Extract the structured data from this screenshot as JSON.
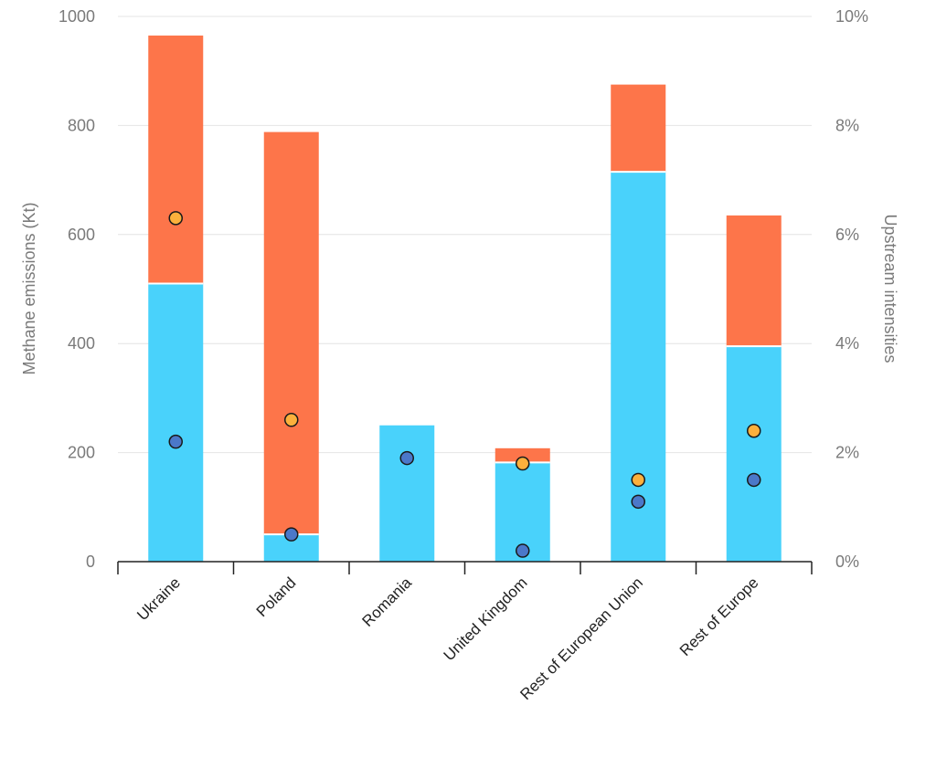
{
  "chart_data": {
    "type": "bar",
    "stacked": true,
    "categories": [
      "Ukraine",
      "Poland",
      "Romania",
      "United Kingdom",
      "Rest of European Union",
      "Rest of Europe"
    ],
    "series": [
      {
        "values": [
          510,
          50,
          250,
          182,
          715,
          395
        ],
        "color": "#49d2fb",
        "kind": "bar",
        "axis": "left"
      },
      {
        "values": [
          455,
          738,
          0,
          26,
          160,
          240
        ],
        "color": "#fd754a",
        "kind": "bar",
        "axis": "left"
      },
      {
        "values": [
          6.3,
          2.6,
          null,
          1.8,
          1.5,
          2.4
        ],
        "color": "#fcb03c",
        "kind": "scatter",
        "axis": "right"
      },
      {
        "values": [
          2.2,
          0.5,
          1.9,
          0.2,
          1.1,
          1.5
        ],
        "color": "#4b78c9",
        "kind": "scatter",
        "axis": "right"
      }
    ],
    "ylabel": "Methane emissions (Kt)",
    "y2label": "Upstream intensities",
    "ylim": [
      0,
      1000
    ],
    "y2lim": [
      0,
      10
    ],
    "yticks": [
      "0",
      "200",
      "400",
      "600",
      "800",
      "1000"
    ],
    "y2ticks": [
      "0%",
      "2%",
      "4%",
      "6%",
      "8%",
      "10%"
    ],
    "grid": true
  }
}
